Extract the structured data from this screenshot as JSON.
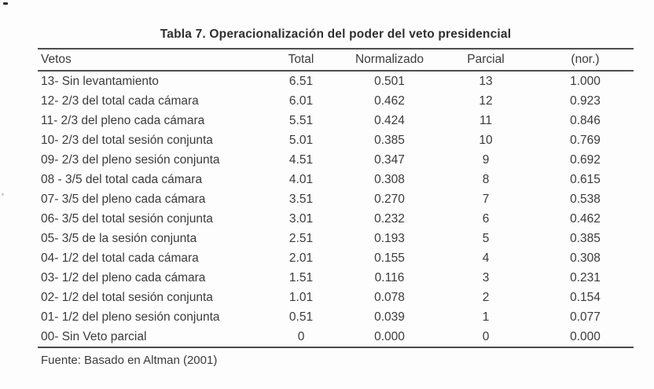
{
  "page": {
    "title": "Tabla 7. Operacionalización del poder del veto presidencial",
    "source_note": "Fuente: Basado en Altman (2001)"
  },
  "table": {
    "columns": [
      "Vetos",
      "Total",
      "Normalizado",
      "Parcial",
      "(nor.)"
    ],
    "rows": [
      [
        "13- Sin levantamiento",
        "6.51",
        "0.501",
        "13",
        "1.000"
      ],
      [
        "12- 2/3 del total cada cámara",
        "6.01",
        "0.462",
        "12",
        "0.923"
      ],
      [
        "11- 2/3 del pleno cada cámara",
        "5.51",
        "0.424",
        "11",
        "0.846"
      ],
      [
        "10- 2/3 del total sesión conjunta",
        "5.01",
        "0.385",
        "10",
        "0.769"
      ],
      [
        "09- 2/3 del pleno sesión conjunta",
        "4.51",
        "0.347",
        "9",
        "0.692"
      ],
      [
        "08 - 3/5 del total cada cámara",
        "4.01",
        "0.308",
        "8",
        "0.615"
      ],
      [
        "07- 3/5 del pleno cada cámara",
        "3.51",
        "0.270",
        "7",
        "0.538"
      ],
      [
        "06- 3/5 del total sesión conjunta",
        "3.01",
        "0.232",
        "6",
        "0.462"
      ],
      [
        "05- 3/5 de la sesión conjunta",
        "2.51",
        "0.193",
        "5",
        "0.385"
      ],
      [
        "04- 1/2 del total cada cámara",
        "2.01",
        "0.155",
        "4",
        "0.308"
      ],
      [
        "03- 1/2 del pleno cada cámara",
        "1.51",
        "0.116",
        "3",
        "0.231"
      ],
      [
        "02- 1/2 del total sesión conjunta",
        "1.01",
        "0.078",
        "2",
        "0.154"
      ],
      [
        "01- 1/2 del pleno sesión conjunta",
        "0.51",
        "0.039",
        "1",
        "0.077"
      ],
      [
        "00- Sin Veto parcial",
        "0",
        "0.000",
        "0",
        "0.000"
      ]
    ]
  },
  "colors": {
    "text": "#3b3b3b",
    "rule": "#4e4e4e",
    "background": "#fdfdfd"
  }
}
